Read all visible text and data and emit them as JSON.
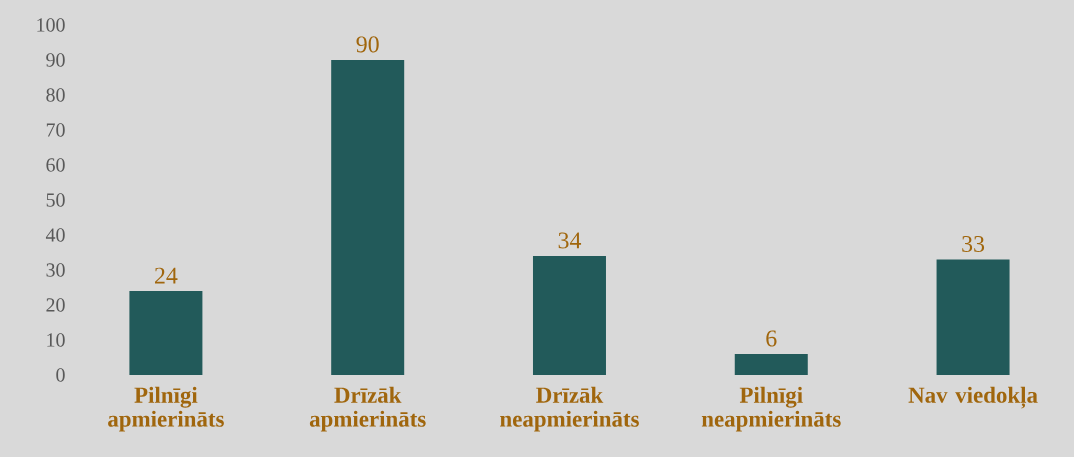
{
  "chart_data": {
    "type": "bar",
    "categories": [
      "Pilnīgi apmierināts",
      "Drīzāk apmierināts",
      "Drīzāk neapmierināts",
      "Pilnīgi neapmierināts",
      "Nav viedokļa"
    ],
    "values": [
      24,
      90,
      34,
      6,
      33
    ],
    "color": "#225a5a",
    "ylim": [
      0,
      100
    ],
    "yticks": [
      0,
      10,
      20,
      30,
      40,
      50,
      60,
      70,
      80,
      90,
      100
    ],
    "data_labels": true
  }
}
